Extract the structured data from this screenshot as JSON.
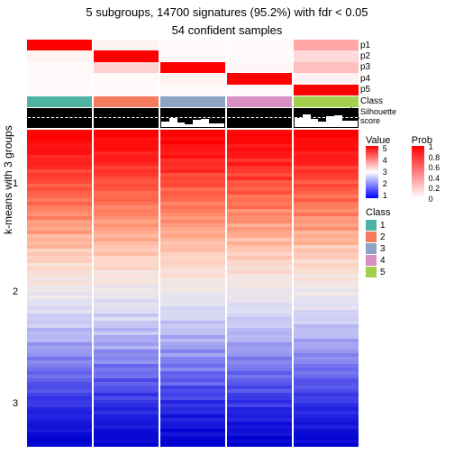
{
  "title1": "5 subgroups, 14700 signatures (95.2%) with fdr < 0.05",
  "title2": "54 confident samples",
  "ylabel": "k-means with 3 groups",
  "yticks": [
    "1",
    "2",
    "3"
  ],
  "prob_labels": [
    "p1",
    "p2",
    "p3",
    "p4",
    "p5"
  ],
  "class_label": "Class",
  "silhouette_label": "Silhouette\nscore",
  "sil_axis": [
    "1",
    "0.5",
    "0"
  ],
  "groups": 5,
  "class_colors": [
    "#4fb3a3",
    "#f47c5d",
    "#8ea4c4",
    "#d98fc5",
    "#a4d04f"
  ],
  "prob_rows": [
    [
      1.0,
      0.05,
      0.02,
      0.02,
      0.35
    ],
    [
      0.05,
      1.0,
      0.03,
      0.02,
      0.15
    ],
    [
      0.02,
      0.18,
      1.0,
      0.03,
      0.25
    ],
    [
      0.02,
      0.02,
      0.05,
      1.0,
      0.05
    ],
    [
      0.02,
      0.02,
      0.02,
      0.02,
      1.0
    ]
  ],
  "sil_vals": [
    0.98,
    0.97,
    0.96,
    0.98,
    0.55
  ],
  "sil_dash_at": 0.5,
  "value_legend": {
    "title": "Value",
    "min": 1,
    "max": 5,
    "colors": [
      "#0000ff",
      "#ffffff",
      "#ff0000"
    ]
  },
  "prob_legend": {
    "title": "Prob",
    "ticks": [
      "1",
      "0.8",
      "0.6",
      "0.4",
      "0.2",
      "0"
    ],
    "low": "#ffffff",
    "high": "#ff0000"
  },
  "class_legend": {
    "title": "Class",
    "labels": [
      "1",
      "2",
      "3",
      "4",
      "5"
    ]
  },
  "heat_rows": 88,
  "heat_gradient": [
    {
      "t": 0.0,
      "c": "#ff0000"
    },
    {
      "t": 0.08,
      "c": "#ff1a1a"
    },
    {
      "t": 0.16,
      "c": "#ff4d3a"
    },
    {
      "t": 0.24,
      "c": "#ff7a5c"
    },
    {
      "t": 0.32,
      "c": "#ffa88a"
    },
    {
      "t": 0.4,
      "c": "#ffd0c0"
    },
    {
      "t": 0.48,
      "c": "#f4e8e4"
    },
    {
      "t": 0.56,
      "c": "#e0e0f4"
    },
    {
      "t": 0.64,
      "c": "#bcbcf4"
    },
    {
      "t": 0.72,
      "c": "#8a8af0"
    },
    {
      "t": 0.8,
      "c": "#5a5aec"
    },
    {
      "t": 0.88,
      "c": "#2a2ae4"
    },
    {
      "t": 1.0,
      "c": "#0000d0"
    }
  ]
}
